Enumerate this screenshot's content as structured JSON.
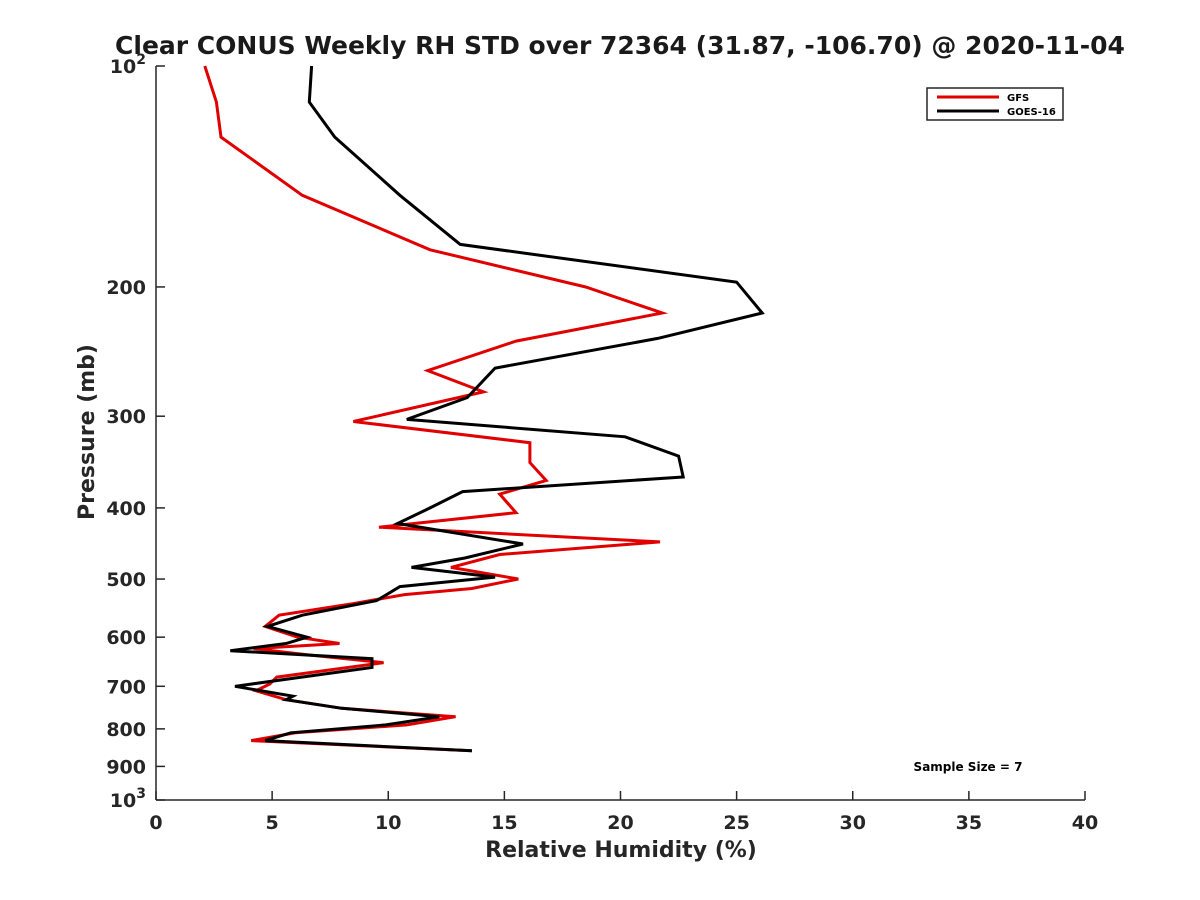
{
  "chart_data": {
    "type": "line",
    "title": "Clear CONUS Weekly RH STD over 72364 (31.87, -106.70) @ 2020-11-04",
    "xlabel": "Relative Humidity (%)",
    "ylabel": "Pressure (mb)",
    "xlim": [
      0,
      40
    ],
    "ylim": [
      100,
      1000
    ],
    "y_scale": "log",
    "y_reversed": true,
    "x_ticks": [
      0,
      5,
      10,
      15,
      20,
      25,
      30,
      35,
      40
    ],
    "x_tick_labels": [
      "0",
      "5",
      "10",
      "15",
      "20",
      "25",
      "30",
      "35",
      "40"
    ],
    "y_ticks": [
      {
        "value": 100,
        "base": "10",
        "exp": "2"
      },
      {
        "value": 200,
        "label": "200"
      },
      {
        "value": 300,
        "label": "300"
      },
      {
        "value": 400,
        "label": "400"
      },
      {
        "value": 500,
        "label": "500"
      },
      {
        "value": 600,
        "label": "600"
      },
      {
        "value": 700,
        "label": "700"
      },
      {
        "value": 800,
        "label": "800"
      },
      {
        "value": 900,
        "label": "900"
      },
      {
        "value": 1000,
        "base": "10",
        "exp": "3"
      }
    ],
    "legend_position": "top-right",
    "annotation": "Sample Size = 7",
    "series": [
      {
        "name": "GFS",
        "color": "#e00000",
        "points": [
          [
            2.1,
            100
          ],
          [
            2.6,
            112
          ],
          [
            2.8,
            125
          ],
          [
            6.3,
            150
          ],
          [
            11.8,
            178
          ],
          [
            18.5,
            200
          ],
          [
            21.8,
            217
          ],
          [
            15.5,
            237
          ],
          [
            11.7,
            260
          ],
          [
            14.1,
            278
          ],
          [
            8.5,
            305
          ],
          [
            16.1,
            326
          ],
          [
            16.1,
            347
          ],
          [
            16.8,
            367
          ],
          [
            14.8,
            383
          ],
          [
            15.5,
            406
          ],
          [
            9.6,
            425
          ],
          [
            21.7,
            445
          ],
          [
            14.8,
            463
          ],
          [
            12.7,
            482
          ],
          [
            15.6,
            500
          ],
          [
            13.6,
            515
          ],
          [
            10.7,
            525
          ],
          [
            8.5,
            540
          ],
          [
            5.3,
            560
          ],
          [
            4.7,
            580
          ],
          [
            6.1,
            600
          ],
          [
            7.9,
            612
          ],
          [
            4.2,
            622
          ],
          [
            6.5,
            634
          ],
          [
            9.8,
            650
          ],
          [
            5.2,
            680
          ],
          [
            4.9,
            695
          ],
          [
            4.3,
            710
          ],
          [
            5.6,
            730
          ],
          [
            8.0,
            750
          ],
          [
            12.9,
            770
          ],
          [
            10.8,
            790
          ],
          [
            6.0,
            810
          ],
          [
            4.1,
            830
          ],
          [
            13.6,
            857
          ]
        ]
      },
      {
        "name": "GOES-16",
        "color": "#000000",
        "points": [
          [
            6.7,
            100
          ],
          [
            6.6,
            112
          ],
          [
            7.7,
            125
          ],
          [
            10.5,
            150
          ],
          [
            13.1,
            175
          ],
          [
            25.0,
            197
          ],
          [
            26.1,
            217
          ],
          [
            21.6,
            235
          ],
          [
            14.6,
            258
          ],
          [
            13.4,
            283
          ],
          [
            10.8,
            303
          ],
          [
            20.2,
            320
          ],
          [
            22.5,
            340
          ],
          [
            22.7,
            363
          ],
          [
            13.2,
            380
          ],
          [
            11.8,
            400
          ],
          [
            10.4,
            420
          ],
          [
            15.8,
            448
          ],
          [
            13.3,
            468
          ],
          [
            11.0,
            482
          ],
          [
            14.6,
            497
          ],
          [
            10.5,
            512
          ],
          [
            9.5,
            535
          ],
          [
            6.3,
            560
          ],
          [
            4.8,
            580
          ],
          [
            6.5,
            600
          ],
          [
            5.6,
            612
          ],
          [
            3.2,
            626
          ],
          [
            9.3,
            642
          ],
          [
            9.3,
            660
          ],
          [
            3.4,
            700
          ],
          [
            5.9,
            722
          ],
          [
            5.6,
            730
          ],
          [
            8.0,
            750
          ],
          [
            12.2,
            770
          ],
          [
            9.9,
            790
          ],
          [
            5.8,
            810
          ],
          [
            4.7,
            830
          ],
          [
            13.6,
            857
          ]
        ]
      }
    ]
  }
}
